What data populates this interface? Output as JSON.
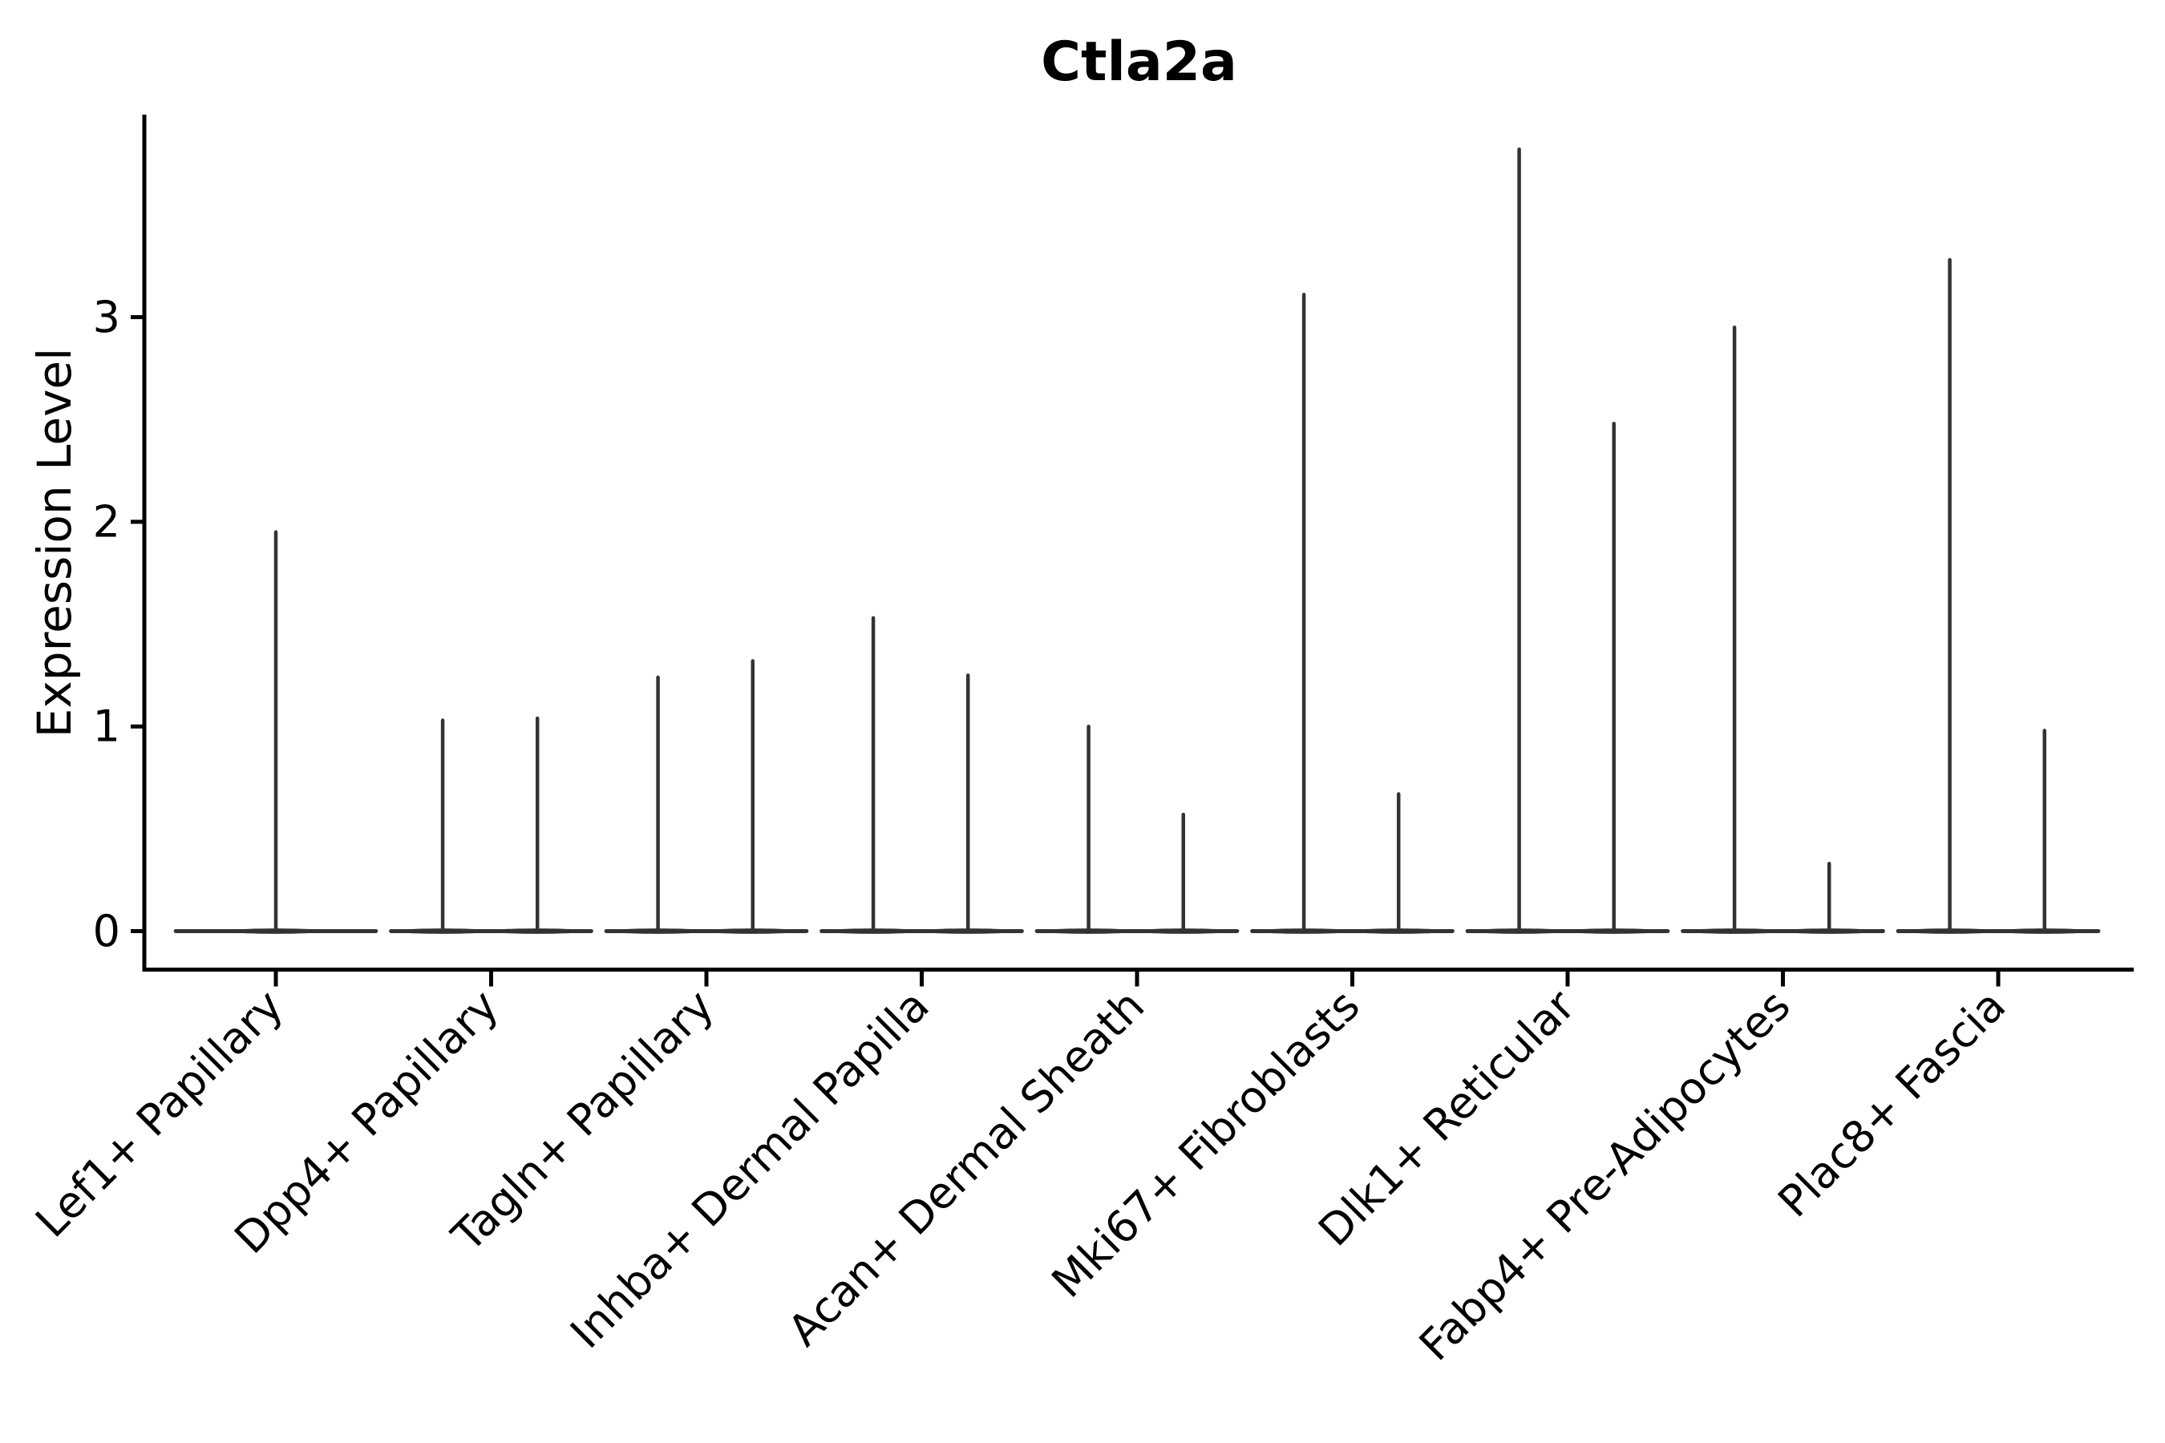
{
  "chart_data": {
    "type": "violin",
    "title": "Ctla2a",
    "xlabel": "",
    "ylabel": "Expression Level",
    "yticks": [
      "0",
      "1",
      "2",
      "3"
    ],
    "ytick_values": [
      0,
      1,
      2,
      3
    ],
    "ylim": [
      -0.2,
      4.0
    ],
    "grid": false,
    "legend": "none",
    "x_tick_rotation_deg": 45,
    "categories": [
      "Lef1+ Papillary",
      "Dpp4+ Papillary",
      "Tagln+ Papillary",
      "Inhba+ Dermal Papilla",
      "Acan+ Dermal Sheath",
      "Mki67+ Fibroblasts",
      "Dlk1+ Reticular",
      "Fabp4+ Pre-Adipocytes",
      "Plac8+ Fascia"
    ],
    "violins": [
      {
        "category": "Lef1+ Papillary",
        "spikes": [
          {
            "offset": 0,
            "max": 1.95
          }
        ]
      },
      {
        "category": "Dpp4+ Papillary",
        "spikes": [
          {
            "offset": -0.225,
            "max": 1.03
          },
          {
            "offset": 0.215,
            "max": 1.04
          }
        ]
      },
      {
        "category": "Tagln+ Papillary",
        "spikes": [
          {
            "offset": -0.225,
            "max": 1.24
          },
          {
            "offset": 0.215,
            "max": 1.32
          }
        ]
      },
      {
        "category": "Inhba+ Dermal Papilla",
        "spikes": [
          {
            "offset": -0.225,
            "max": 1.53
          },
          {
            "offset": 0.215,
            "max": 1.25
          }
        ]
      },
      {
        "category": "Acan+ Dermal Sheath",
        "spikes": [
          {
            "offset": -0.225,
            "max": 1.0
          },
          {
            "offset": 0.215,
            "max": 0.57
          }
        ]
      },
      {
        "category": "Mki67+ Fibroblasts",
        "spikes": [
          {
            "offset": -0.225,
            "max": 3.11
          },
          {
            "offset": 0.215,
            "max": 0.67
          }
        ]
      },
      {
        "category": "Dlk1+ Reticular",
        "spikes": [
          {
            "offset": -0.225,
            "max": 3.82
          },
          {
            "offset": 0.215,
            "max": 2.48
          }
        ]
      },
      {
        "category": "Fabp4+ Pre-Adipocytes",
        "spikes": [
          {
            "offset": -0.225,
            "max": 2.95
          },
          {
            "offset": 0.215,
            "max": 0.33
          }
        ]
      },
      {
        "category": "Plac8+ Fascia",
        "spikes": [
          {
            "offset": -0.225,
            "max": 3.28
          },
          {
            "offset": 0.215,
            "max": 0.98
          }
        ]
      }
    ],
    "baseline_halfwidth_frac": 0.465,
    "colors": {
      "violin": "#333333",
      "axis": "#000000",
      "background": "#ffffff"
    }
  }
}
